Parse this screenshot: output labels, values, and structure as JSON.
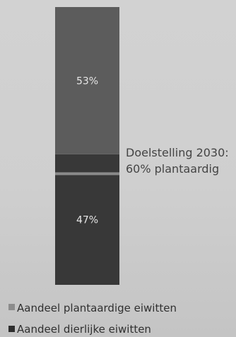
{
  "chart_data": {
    "type": "bar",
    "stacked": true,
    "orientation": "vertical",
    "categories": [
      ""
    ],
    "series": [
      {
        "name": "Aandeel dierlijke eiwitten",
        "values": [
          47
        ],
        "label": "47%",
        "color": "#383838"
      },
      {
        "name": "Aandeel plantaardige eiwitten",
        "values": [
          53
        ],
        "label": "53%",
        "color": "#5c5c5c"
      }
    ],
    "ylim": [
      0,
      100
    ],
    "reference_line": {
      "value": 40,
      "color": "#8a8a8a",
      "label_lines": [
        "Doelstelling 2030:",
        "60% plantaardig"
      ]
    },
    "legend": {
      "placement": "bottom-left",
      "items": [
        {
          "label": "Aandeel plantaardige eiwitten",
          "color": "#8c8c8c"
        },
        {
          "label": "Aandeel dierlijke eiwitten",
          "color": "#2e2e2e"
        }
      ]
    },
    "title": "",
    "xlabel": "",
    "ylabel": "",
    "grid": false
  }
}
